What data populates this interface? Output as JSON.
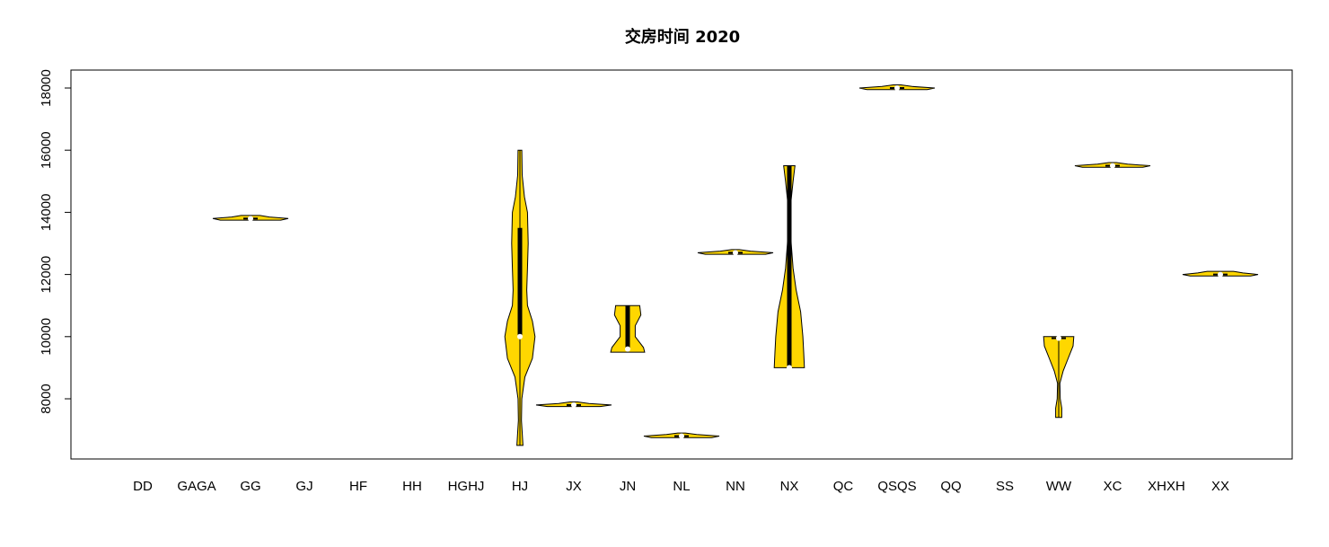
{
  "chart_data": {
    "type": "violin",
    "title": "交房时间 2020",
    "xlabel": "",
    "ylabel": "",
    "ylim": [
      6000,
      18600
    ],
    "y_ticks": [
      8000,
      10000,
      12000,
      14000,
      16000,
      18000
    ],
    "fill_color": "#FFD700",
    "median_color": "#FFFFFF",
    "grid": false,
    "categories": [
      "DD",
      "GAGA",
      "GG",
      "GJ",
      "HF",
      "HH",
      "HGHJ",
      "HJ",
      "JX",
      "JN",
      "NL",
      "NN",
      "NX",
      "QC",
      "QSQS",
      "QQ",
      "SS",
      "WW",
      "XC",
      "XHXH",
      "XX"
    ],
    "violins": [
      {
        "category": "GG",
        "min": 13750,
        "max": 13900,
        "q1": 13800,
        "q3": 13800,
        "median": 13800,
        "profile": [
          [
            13750,
            0.8
          ],
          [
            13800,
            1.0
          ],
          [
            13850,
            0.5
          ],
          [
            13900,
            0.25
          ]
        ]
      },
      {
        "category": "HJ",
        "min": 6500,
        "max": 16000,
        "q1": 10000,
        "q3": 13500,
        "median": 10000,
        "profile": [
          [
            6500,
            0.08
          ],
          [
            7300,
            0.04
          ],
          [
            8000,
            0.05
          ],
          [
            8700,
            0.13
          ],
          [
            9300,
            0.33
          ],
          [
            10000,
            0.4
          ],
          [
            10500,
            0.33
          ],
          [
            11000,
            0.2
          ],
          [
            11500,
            0.18
          ],
          [
            12200,
            0.2
          ],
          [
            13000,
            0.22
          ],
          [
            14000,
            0.2
          ],
          [
            14500,
            0.12
          ],
          [
            15200,
            0.06
          ],
          [
            16000,
            0.05
          ]
        ]
      },
      {
        "category": "JX",
        "min": 7750,
        "max": 7900,
        "q1": 7800,
        "q3": 7800,
        "median": 7800,
        "profile": [
          [
            7750,
            0.7
          ],
          [
            7800,
            1.0
          ],
          [
            7850,
            0.4
          ],
          [
            7900,
            0.1
          ]
        ]
      },
      {
        "category": "JN",
        "min": 9500,
        "max": 11000,
        "q1": 9600,
        "q3": 11000,
        "median": 9600,
        "profile": [
          [
            9500,
            0.45
          ],
          [
            9650,
            0.42
          ],
          [
            10000,
            0.2
          ],
          [
            10350,
            0.2
          ],
          [
            10700,
            0.35
          ],
          [
            11000,
            0.32
          ]
        ]
      },
      {
        "category": "NL",
        "min": 6750,
        "max": 6900,
        "q1": 6800,
        "q3": 6800,
        "median": 6800,
        "profile": [
          [
            6750,
            0.8
          ],
          [
            6800,
            1.0
          ],
          [
            6850,
            0.4
          ],
          [
            6900,
            0.1
          ]
        ]
      },
      {
        "category": "NN",
        "min": 12650,
        "max": 12800,
        "q1": 12700,
        "q3": 12700,
        "median": 12700,
        "profile": [
          [
            12650,
            0.8
          ],
          [
            12700,
            1.0
          ],
          [
            12750,
            0.4
          ],
          [
            12800,
            0.1
          ]
        ]
      },
      {
        "category": "NX",
        "min": 9000,
        "max": 15500,
        "q1": 9000,
        "q3": 15500,
        "median": 9000,
        "profile": [
          [
            9000,
            0.4
          ],
          [
            9500,
            0.38
          ],
          [
            10000,
            0.36
          ],
          [
            10800,
            0.3
          ],
          [
            11500,
            0.18
          ],
          [
            12200,
            0.1
          ],
          [
            13000,
            0.05
          ],
          [
            13600,
            0.03
          ],
          [
            14200,
            0.03
          ],
          [
            15000,
            0.1
          ],
          [
            15500,
            0.15
          ]
        ]
      },
      {
        "category": "QSQS",
        "min": 17950,
        "max": 18100,
        "q1": 18000,
        "q3": 18000,
        "median": 18000,
        "profile": [
          [
            17950,
            0.8
          ],
          [
            18000,
            1.0
          ],
          [
            18050,
            0.4
          ],
          [
            18100,
            0.1
          ]
        ]
      },
      {
        "category": "XC",
        "min": 15450,
        "max": 15600,
        "q1": 15500,
        "q3": 15500,
        "median": 15500,
        "profile": [
          [
            15450,
            0.8
          ],
          [
            15500,
            1.0
          ],
          [
            15550,
            0.4
          ],
          [
            15600,
            0.1
          ]
        ]
      },
      {
        "category": "WW",
        "min": 7400,
        "max": 10000,
        "q1": 9950,
        "q3": 9950,
        "median": 9950,
        "profile": [
          [
            7400,
            0.08
          ],
          [
            7700,
            0.08
          ],
          [
            8000,
            0.04
          ],
          [
            8500,
            0.03
          ],
          [
            8900,
            0.12
          ],
          [
            9300,
            0.25
          ],
          [
            9700,
            0.38
          ],
          [
            10000,
            0.4
          ]
        ]
      },
      {
        "category": "XX",
        "min": 11950,
        "max": 12100,
        "q1": 12000,
        "q3": 12000,
        "median": 12000,
        "profile": [
          [
            11950,
            0.8
          ],
          [
            12000,
            1.0
          ],
          [
            12050,
            0.6
          ],
          [
            12100,
            0.35
          ]
        ]
      }
    ]
  }
}
